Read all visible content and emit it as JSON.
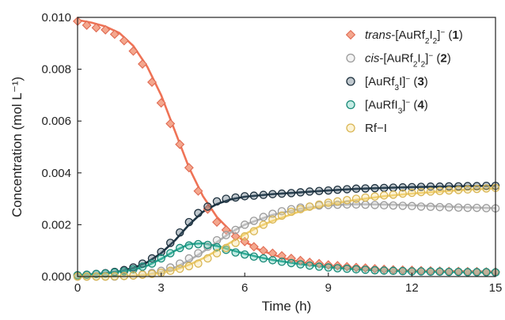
{
  "chart_data": {
    "type": "scatter",
    "title": "",
    "xlabel": "Time (h)",
    "ylabel": "Concentration (mol L⁻¹)",
    "xlim": [
      0,
      15
    ],
    "ylim": [
      0,
      0.01
    ],
    "xticks": [
      0,
      3,
      6,
      9,
      12,
      15
    ],
    "yticks": [
      0,
      0.002,
      0.004,
      0.006,
      0.008,
      0.01
    ],
    "xtick_labels": [
      "0",
      "3",
      "6",
      "9",
      "12",
      "15"
    ],
    "ytick_labels": [
      "0.000",
      "0.002",
      "0.004",
      "0.006",
      "0.008",
      "0.010"
    ],
    "grid": false,
    "legend_position": "top-right",
    "legend": [
      {
        "id": "s1",
        "parts": [
          {
            "t": "trans",
            "i": true
          },
          {
            "t": "-[AuRf"
          },
          {
            "t": "2",
            "sub": true
          },
          {
            "t": "I"
          },
          {
            "t": "2",
            "sub": true
          },
          {
            "t": "]"
          },
          {
            "t": "−",
            "sup": true
          },
          {
            "t": " ("
          },
          {
            "t": "1",
            "b": true
          },
          {
            "t": ")"
          }
        ]
      },
      {
        "id": "s2",
        "parts": [
          {
            "t": "cis",
            "i": true
          },
          {
            "t": "-[AuRf"
          },
          {
            "t": "2",
            "sub": true
          },
          {
            "t": "I"
          },
          {
            "t": "2",
            "sub": true
          },
          {
            "t": "]"
          },
          {
            "t": "−",
            "sup": true
          },
          {
            "t": " ("
          },
          {
            "t": "2",
            "b": true
          },
          {
            "t": ")"
          }
        ]
      },
      {
        "id": "s3",
        "parts": [
          {
            "t": "[AuRf"
          },
          {
            "t": "3",
            "sub": true
          },
          {
            "t": "I]"
          },
          {
            "t": "−",
            "sup": true
          },
          {
            "t": " ("
          },
          {
            "t": "3",
            "b": true
          },
          {
            "t": ")"
          }
        ]
      },
      {
        "id": "s4",
        "parts": [
          {
            "t": "[AuRfI"
          },
          {
            "t": "3",
            "sub": true
          },
          {
            "t": "]"
          },
          {
            "t": "−",
            "sup": true
          },
          {
            "t": " ("
          },
          {
            "t": "4",
            "b": true
          },
          {
            "t": ")"
          }
        ]
      },
      {
        "id": "s5",
        "parts": [
          {
            "t": "Rf−I"
          }
        ]
      }
    ],
    "series": [
      {
        "id": "s1",
        "marker": "diamond",
        "marker_fill": "#f4a78e",
        "marker_stroke": "#e06a52",
        "line_color": "#ef7356",
        "x": [
          0,
          0.33,
          0.67,
          1.0,
          1.33,
          1.67,
          2.0,
          2.33,
          2.67,
          3.0,
          3.33,
          3.67,
          4.0,
          4.33,
          4.67,
          5.0,
          5.33,
          5.67,
          6.0,
          6.33,
          6.67,
          7.0,
          7.33,
          7.67,
          8.0,
          8.33,
          8.67,
          9.0,
          9.33,
          9.67,
          10.0,
          10.33,
          10.67,
          11.0,
          11.33,
          11.67,
          12.0,
          12.33,
          12.67,
          13.0,
          13.33,
          13.67,
          14.0,
          14.33,
          14.67,
          15.0
        ],
        "y": [
          0.00985,
          0.0097,
          0.0096,
          0.00952,
          0.00935,
          0.0091,
          0.0087,
          0.0082,
          0.0075,
          0.0067,
          0.0059,
          0.0051,
          0.0042,
          0.0033,
          0.0026,
          0.0021,
          0.0018,
          0.00155,
          0.00135,
          0.00115,
          0.001,
          0.0009,
          0.0008,
          0.0007,
          0.00062,
          0.00055,
          0.0005,
          0.00045,
          0.00042,
          0.00038,
          0.00035,
          0.00033,
          0.0003,
          0.00028,
          0.00026,
          0.00025,
          0.00024,
          0.00023,
          0.00022,
          0.00021,
          0.0002,
          0.0002,
          0.00019,
          0.00019,
          0.00018,
          0.00018
        ],
        "fit_x": [
          0,
          0.5,
          1.0,
          1.5,
          2.0,
          2.5,
          3.0,
          3.5,
          4.0,
          4.5,
          5.0,
          5.5,
          6.0,
          6.5,
          7.0,
          7.5,
          8.0,
          9.0,
          10.0,
          11.0,
          12.0,
          13.0,
          14.0,
          15.0
        ],
        "fit_y": [
          0.0099,
          0.0098,
          0.00965,
          0.0094,
          0.0089,
          0.0081,
          0.007,
          0.0056,
          0.0042,
          0.0031,
          0.0023,
          0.00175,
          0.00135,
          0.00105,
          0.00085,
          0.00068,
          0.00056,
          0.0004,
          0.00031,
          0.00026,
          0.00023,
          0.00021,
          0.0002,
          0.00019
        ]
      },
      {
        "id": "s2",
        "marker": "circle",
        "marker_fill": "#dcdcdc",
        "marker_stroke": "#9a9a9a",
        "line_color": "#b0b0b0",
        "x": [
          0,
          0.33,
          0.67,
          1.0,
          1.33,
          1.67,
          2.0,
          2.33,
          2.67,
          3.0,
          3.33,
          3.67,
          4.0,
          4.33,
          4.67,
          5.0,
          5.33,
          5.67,
          6.0,
          6.33,
          6.67,
          7.0,
          7.33,
          7.67,
          8.0,
          8.33,
          8.67,
          9.0,
          9.33,
          9.67,
          10.0,
          10.33,
          10.67,
          11.0,
          11.33,
          11.67,
          12.0,
          12.33,
          12.67,
          13.0,
          13.33,
          13.67,
          14.0,
          14.33,
          14.67,
          15.0
        ],
        "y": [
          0,
          0,
          0,
          0,
          0,
          2e-05,
          4e-05,
          8e-05,
          0.00014,
          0.00022,
          0.00035,
          0.0005,
          0.0007,
          0.0009,
          0.00115,
          0.0014,
          0.0016,
          0.0018,
          0.002,
          0.00215,
          0.0023,
          0.00242,
          0.00252,
          0.0026,
          0.00266,
          0.0027,
          0.00274,
          0.00276,
          0.00277,
          0.00278,
          0.00278,
          0.00277,
          0.00276,
          0.00275,
          0.00274,
          0.00273,
          0.00272,
          0.0027,
          0.00269,
          0.00268,
          0.00267,
          0.00266,
          0.00265,
          0.00265,
          0.00264,
          0.00263
        ],
        "fit_x": [
          0,
          1.0,
          2.0,
          2.5,
          3.0,
          3.5,
          4.0,
          4.5,
          5.0,
          5.5,
          6.0,
          7.0,
          8.0,
          9.0,
          10.0,
          11.0,
          12.0,
          13.0,
          14.0,
          15.0
        ],
        "fit_y": [
          0,
          0,
          3e-05,
          8e-05,
          0.00018,
          0.00035,
          0.00062,
          0.00095,
          0.00133,
          0.0017,
          0.002,
          0.00238,
          0.00262,
          0.00275,
          0.00279,
          0.00278,
          0.00275,
          0.00271,
          0.00267,
          0.00264
        ]
      },
      {
        "id": "s3",
        "marker": "circle",
        "marker_fill": "#4a6274",
        "marker_stroke": "#1c2f3c",
        "line_color": "#1e3544",
        "x": [
          0,
          0.33,
          0.67,
          1.0,
          1.33,
          1.67,
          2.0,
          2.33,
          2.67,
          3.0,
          3.33,
          3.67,
          4.0,
          4.33,
          4.67,
          5.0,
          5.33,
          5.67,
          6.0,
          6.33,
          6.67,
          7.0,
          7.33,
          7.67,
          8.0,
          8.33,
          8.67,
          9.0,
          9.33,
          9.67,
          10.0,
          10.33,
          10.67,
          11.0,
          11.33,
          11.67,
          12.0,
          12.33,
          12.67,
          13.0,
          13.33,
          13.67,
          14.0,
          14.33,
          14.67,
          15.0
        ],
        "y": [
          5e-05,
          7e-05,
          0.0001,
          0.00013,
          0.00018,
          0.00025,
          0.00035,
          0.0005,
          0.0007,
          0.00095,
          0.0013,
          0.0017,
          0.0021,
          0.00245,
          0.0027,
          0.0029,
          0.003,
          0.00305,
          0.0031,
          0.00312,
          0.00315,
          0.00318,
          0.0032,
          0.00322,
          0.00325,
          0.00328,
          0.0033,
          0.00332,
          0.00335,
          0.00337,
          0.00339,
          0.0034,
          0.00341,
          0.00342,
          0.00343,
          0.00344,
          0.00345,
          0.00346,
          0.00347,
          0.00347,
          0.00348,
          0.00348,
          0.00349,
          0.00349,
          0.0035,
          0.0035
        ],
        "fit_x": [
          0,
          1.0,
          1.5,
          2.0,
          2.5,
          3.0,
          3.5,
          4.0,
          4.5,
          5.0,
          5.5,
          6.0,
          7.0,
          8.0,
          9.0,
          10.0,
          11.0,
          12.0,
          13.0,
          14.0,
          15.0
        ],
        "fit_y": [
          5e-05,
          0.00013,
          0.0002,
          0.00033,
          0.00055,
          0.0009,
          0.0014,
          0.002,
          0.0025,
          0.0028,
          0.00298,
          0.00308,
          0.00318,
          0.00325,
          0.00332,
          0.00338,
          0.00342,
          0.00345,
          0.00347,
          0.00349,
          0.0035
        ]
      },
      {
        "id": "s4",
        "marker": "circle",
        "marker_fill": "#5cc8b5",
        "marker_stroke": "#198a78",
        "line_color": "#22a28c",
        "x": [
          0,
          0.33,
          0.67,
          1.0,
          1.33,
          1.67,
          2.0,
          2.33,
          2.67,
          3.0,
          3.33,
          3.67,
          4.0,
          4.33,
          4.67,
          5.0,
          5.33,
          5.67,
          6.0,
          6.33,
          6.67,
          7.0,
          7.33,
          7.67,
          8.0,
          8.33,
          8.67,
          9.0,
          9.33,
          9.67,
          10.0,
          10.33,
          10.67,
          11.0,
          11.33,
          11.67,
          12.0,
          12.33,
          12.67,
          13.0,
          13.33,
          13.67,
          14.0,
          14.33,
          14.67,
          15.0
        ],
        "y": [
          5e-05,
          7e-05,
          0.0001,
          0.00012,
          0.00016,
          0.0002,
          0.00028,
          0.00038,
          0.0005,
          0.0007,
          0.0009,
          0.0011,
          0.0012,
          0.00125,
          0.00122,
          0.00113,
          0.00103,
          0.00093,
          0.00085,
          0.00077,
          0.0007,
          0.00063,
          0.00057,
          0.00052,
          0.00047,
          0.00042,
          0.00038,
          0.00035,
          0.00032,
          0.0003,
          0.00028,
          0.00026,
          0.00024,
          0.00023,
          0.00022,
          0.00021,
          0.0002,
          0.0002,
          0.00019,
          0.00019,
          0.00018,
          0.00018,
          0.00017,
          0.00017,
          0.00017,
          0.00016
        ],
        "fit_x": [
          0,
          1.0,
          2.0,
          2.5,
          3.0,
          3.5,
          4.0,
          4.5,
          5.0,
          5.5,
          6.0,
          6.5,
          7.0,
          8.0,
          9.0,
          10.0,
          11.0,
          12.0,
          13.0,
          14.0,
          15.0
        ],
        "fit_y": [
          5e-05,
          0.00012,
          0.00026,
          0.00042,
          0.00068,
          0.001,
          0.00125,
          0.00128,
          0.00118,
          0.00103,
          0.00088,
          0.00075,
          0.00064,
          0.00048,
          0.00036,
          0.00028,
          0.00023,
          0.0002,
          0.00018,
          0.00017,
          0.00016
        ]
      },
      {
        "id": "s5",
        "marker": "circle",
        "marker_fill": "#f7dc8c",
        "marker_stroke": "#d9b653",
        "line_color": "#f0cd6a",
        "x": [
          0,
          0.33,
          0.67,
          1.0,
          1.33,
          1.67,
          2.0,
          2.33,
          2.67,
          3.0,
          3.33,
          3.67,
          4.0,
          4.33,
          4.67,
          5.0,
          5.33,
          5.67,
          6.0,
          6.33,
          6.67,
          7.0,
          7.33,
          7.67,
          8.0,
          8.33,
          8.67,
          9.0,
          9.33,
          9.67,
          10.0,
          10.33,
          10.67,
          11.0,
          11.33,
          11.67,
          12.0,
          12.33,
          12.67,
          13.0,
          13.33,
          13.67,
          14.0,
          14.33,
          14.67,
          15.0
        ],
        "y": [
          0,
          0,
          0,
          0,
          1e-05,
          2e-05,
          4e-05,
          7e-05,
          0.0001,
          0.00015,
          0.00022,
          0.0003,
          0.0004,
          0.0005,
          0.0007,
          0.0009,
          0.0011,
          0.0013,
          0.00155,
          0.00175,
          0.002,
          0.0022,
          0.00235,
          0.0025,
          0.0026,
          0.0027,
          0.00278,
          0.00285,
          0.0029,
          0.00295,
          0.003,
          0.00305,
          0.00309,
          0.00313,
          0.00316,
          0.0032,
          0.00323,
          0.00326,
          0.00328,
          0.0033,
          0.00332,
          0.00334,
          0.00336,
          0.00338,
          0.0034,
          0.00342
        ],
        "fit_x": [
          0,
          1.0,
          2.0,
          2.5,
          3.0,
          3.5,
          4.0,
          4.5,
          5.0,
          5.5,
          6.0,
          6.5,
          7.0,
          8.0,
          9.0,
          10.0,
          11.0,
          12.0,
          13.0,
          14.0,
          15.0
        ],
        "fit_y": [
          0,
          0,
          3e-05,
          7e-05,
          0.00014,
          0.00026,
          0.00045,
          0.0007,
          0.001,
          0.00132,
          0.00163,
          0.00192,
          0.00215,
          0.00252,
          0.00278,
          0.00296,
          0.0031,
          0.0032,
          0.00328,
          0.00335,
          0.0034
        ]
      }
    ]
  }
}
